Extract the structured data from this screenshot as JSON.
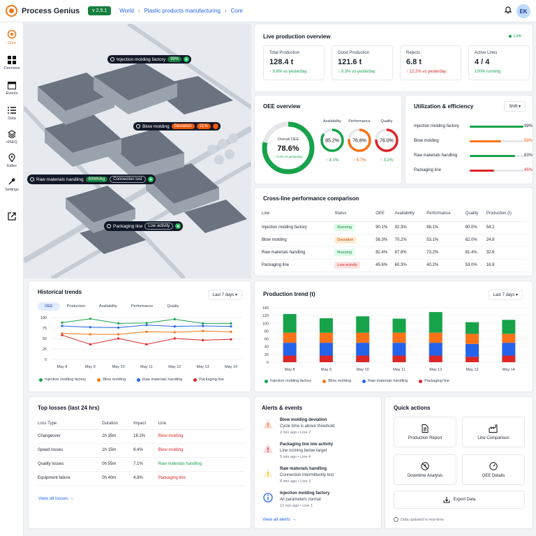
{
  "app": {
    "name": "Process Genius",
    "version": "v 2.5.1"
  },
  "breadcrumb": [
    "World",
    "Plastic products manufacturing",
    "Core"
  ],
  "user": {
    "initials": "EK"
  },
  "nav": [
    {
      "label": "Core",
      "icon": "core-icon"
    },
    {
      "label": "Overview",
      "icon": "grid-icon"
    },
    {
      "label": "Events",
      "icon": "calendar-icon"
    },
    {
      "label": "Data",
      "icon": "list-icon"
    },
    {
      "label": "HSEQ",
      "icon": "layers-icon"
    },
    {
      "label": "Editor",
      "icon": "pin-icon"
    },
    {
      "label": "Settings",
      "icon": "wrench-icon"
    }
  ],
  "map_tags": [
    {
      "name": "Injection molding factory",
      "value": "99%",
      "tone": "g"
    },
    {
      "name": "Blow molding",
      "value": "21%",
      "status": "Deviation",
      "tone": "o"
    },
    {
      "name": "Raw materials handling",
      "value": "83Wh/kg",
      "status": "Connection lost",
      "tone": "g"
    },
    {
      "name": "Packaging line",
      "status": "Low activity",
      "tone": "d"
    }
  ],
  "live": {
    "title": "Live production overview",
    "badge": "Live",
    "kpis": [
      {
        "label": "Total Production",
        "value": "128.4 t",
        "sub": "↑ 8.6% vs yesterday",
        "tone": "green"
      },
      {
        "label": "Good Production",
        "value": "121.6 t",
        "sub": "↑ 9.3% vs yesterday",
        "tone": "green"
      },
      {
        "label": "Rejects",
        "value": "6.8 t",
        "sub": "↑ 12.2% vs yesterday",
        "tone": "red"
      },
      {
        "label": "Active Lines",
        "value": "4 / 4",
        "sub": "100% running",
        "tone": "green"
      }
    ]
  },
  "oee": {
    "title": "OEE overview",
    "overall_label": "Overall OEE",
    "overall_value": "78.6%",
    "overall_fraction": 0.786,
    "overall_sub": "↑ 6.2% vs yesterday",
    "metrics": [
      {
        "label": "Availability",
        "value": "85.2%",
        "fraction": 0.852,
        "delta": "↑ 4.1%",
        "color": "#16a34a",
        "tone": "green"
      },
      {
        "label": "Performance",
        "value": "76.8%",
        "fraction": 0.768,
        "delta": "↑ 5.7%",
        "color": "#f97316",
        "tone": "orange"
      },
      {
        "label": "Quality",
        "value": "76.0%",
        "fraction": 0.76,
        "delta": "↑ 3.2%",
        "color": "#dc2626",
        "tone": "green"
      }
    ]
  },
  "util": {
    "title": "Utilization & efficiency",
    "period": "Shift",
    "rows": [
      {
        "label": "Injection molding factory",
        "value": "99%",
        "fraction": 0.99,
        "color": "#16a34a",
        "tone": ""
      },
      {
        "label": "Blow molding",
        "value": "58%",
        "fraction": 0.58,
        "color": "#f97316",
        "tone": "orange"
      },
      {
        "label": "Raw materials handling",
        "value": "83%",
        "fraction": 0.83,
        "color": "#16a34a",
        "tone": ""
      },
      {
        "label": "Packaging line",
        "value": "45%",
        "fraction": 0.45,
        "color": "#dc2626",
        "tone": "red"
      }
    ]
  },
  "cross": {
    "title": "Cross-line performance comparison",
    "headers": [
      "Line",
      "Status",
      "OEE",
      "Availability",
      "Performance",
      "Quality",
      "Production (t)"
    ],
    "rows": [
      [
        "Injection molding factory",
        "Running",
        "90.1%",
        "92.3%",
        "88.1%",
        "90.0%",
        "54.2"
      ],
      [
        "Blow molding",
        "Deviation",
        "58.3%",
        "70.2%",
        "53.1%",
        "62.0%",
        "24.8"
      ],
      [
        "Raw materials handling",
        "Running",
        "82.4%",
        "87.6%",
        "73.2%",
        "81.4%",
        "32.6"
      ],
      [
        "Packaging line",
        "Low activity",
        "45.6%",
        "60.3%",
        "40.2%",
        "53.0%",
        "16.8"
      ]
    ]
  },
  "hist": {
    "title": "Historical trends",
    "period": "Last 7 days",
    "tabs": [
      "OEE",
      "Production",
      "Availability",
      "Performance",
      "Quality"
    ]
  },
  "prod": {
    "title": "Production trend (t)",
    "period": "Last 7 days"
  },
  "chart_data": [
    {
      "type": "line",
      "x": [
        "May 8",
        "May 9",
        "May 10",
        "May 11",
        "May 12",
        "May 13",
        "May 14"
      ],
      "ylim": [
        0,
        100
      ],
      "yticks": [
        0,
        25,
        50,
        75,
        100
      ],
      "series": [
        {
          "name": "Injection molding factory",
          "color": "#16a34a",
          "values": [
            88,
            97,
            86,
            87,
            96,
            86,
            86
          ]
        },
        {
          "name": "Blow molding",
          "color": "#f97316",
          "values": [
            62,
            60,
            60,
            66,
            65,
            68,
            66
          ]
        },
        {
          "name": "Raw materials handling",
          "color": "#2563eb",
          "values": [
            80,
            77,
            76,
            82,
            79,
            80,
            79
          ]
        },
        {
          "name": "Packaging line",
          "color": "#dc2626",
          "values": [
            58,
            36,
            50,
            36,
            50,
            46,
            48
          ]
        }
      ]
    },
    {
      "type": "bar",
      "stacked": true,
      "categories": [
        "May 8",
        "May 9",
        "May 10",
        "May 11",
        "May 12",
        "May 13",
        "May 14"
      ],
      "ylim": [
        0,
        140
      ],
      "yticks": [
        0,
        20,
        40,
        60,
        80,
        100,
        120,
        140
      ],
      "series": [
        {
          "name": "Injection molding factory",
          "color": "#16a34a",
          "values": [
            48,
            37,
            42,
            36,
            53,
            30,
            36
          ]
        },
        {
          "name": "Blow molding",
          "color": "#f97316",
          "values": [
            26,
            26,
            26,
            26,
            26,
            26,
            23
          ]
        },
        {
          "name": "Raw materials handling",
          "color": "#2563eb",
          "values": [
            33,
            33,
            33,
            33,
            33,
            33,
            33
          ]
        },
        {
          "name": "Packaging line",
          "color": "#dc2626",
          "values": [
            17,
            17,
            17,
            17,
            17,
            14,
            17
          ]
        }
      ]
    }
  ],
  "losses": {
    "title": "Top losses (last 24 hrs)",
    "headers": [
      "Loss Type",
      "Duration",
      "Impact",
      "Line"
    ],
    "rows": [
      {
        "type": "Changeover",
        "duration": "2h 35m",
        "impact": "18.2%",
        "line": "Blow molding",
        "tone": "red"
      },
      {
        "type": "Speed losses",
        "duration": "1h 15m",
        "impact": "9.4%",
        "line": "Blow molding",
        "tone": "red"
      },
      {
        "type": "Quality losses",
        "duration": "0h 55m",
        "impact": "7.1%",
        "line": "Raw materials handling",
        "tone": "green"
      },
      {
        "type": "Equipment failure",
        "duration": "0h 40m",
        "impact": "4.8%",
        "line": "Packaging line",
        "tone": "red"
      }
    ],
    "link": "View all losses →"
  },
  "alerts": {
    "title": "Alerts & events",
    "items": [
      {
        "title": "Blow molding deviation",
        "desc": "Cycle time is above threshold",
        "meta": "2 min ago • Line 2",
        "icon": "warning-icon",
        "color": "#ea580c"
      },
      {
        "title": "Packaging line low activity",
        "desc": "Line running below target",
        "meta": "5 min ago • Line 4",
        "icon": "warning-icon",
        "color": "#dc2626"
      },
      {
        "title": "Raw materials handling",
        "desc": "Connection intermittently lost",
        "meta": "8 min ago • Line 3",
        "icon": "warning-icon",
        "color": "#eab308"
      },
      {
        "title": "Injection molding factory",
        "desc": "All parameters normal",
        "meta": "12 min ago • Line 1",
        "icon": "info-icon",
        "color": "#2563eb"
      }
    ],
    "link": "View all alerts →"
  },
  "quick": {
    "title": "Quick actions",
    "items": [
      "Production Report",
      "Line Comparison",
      "Downtime Analysis",
      "OEE Details"
    ],
    "export": "Export Data",
    "footer": "Data updated in real-time"
  }
}
